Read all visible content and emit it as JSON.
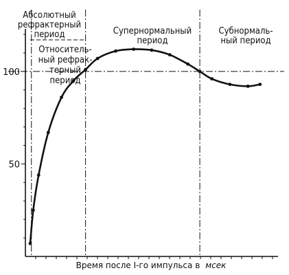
{
  "chart_data": {
    "type": "line",
    "title": "",
    "xlabel": "Время после I-го импульса в",
    "xlabel_unit": "мсек",
    "ylabel": "",
    "yticks": [
      50,
      100
    ],
    "ylim": [
      0,
      123
    ],
    "grid": false,
    "legend": "none",
    "curve_color": "#111111",
    "reference_level": 100,
    "period_boundaries": [
      0.1,
      1.0,
      2.9
    ],
    "periods": [
      {
        "name": "absolute",
        "lines": [
          "Абсолютный",
          "рефрактерный",
          "период"
        ]
      },
      {
        "name": "relative",
        "lines": [
          "Относитель-",
          "ный рефрак-",
          "терный",
          "период"
        ]
      },
      {
        "name": "supernormal",
        "lines": [
          "Супернормальный",
          "период"
        ]
      },
      {
        "name": "subnormal",
        "lines": [
          "Субнормаль-",
          "ный период"
        ]
      }
    ],
    "series": [
      {
        "points": [
          [
            0.08,
            7
          ],
          [
            0.13,
            25
          ],
          [
            0.22,
            44
          ],
          [
            0.38,
            67
          ],
          [
            0.6,
            86
          ],
          [
            0.8,
            95
          ],
          [
            1.0,
            101
          ],
          [
            1.2,
            107
          ],
          [
            1.5,
            111
          ],
          [
            1.8,
            112
          ],
          [
            2.1,
            111.5
          ],
          [
            2.4,
            109
          ],
          [
            2.7,
            104
          ],
          [
            2.9,
            100
          ],
          [
            3.1,
            96
          ],
          [
            3.4,
            93
          ],
          [
            3.7,
            92
          ],
          [
            3.9,
            93
          ]
        ]
      }
    ]
  }
}
